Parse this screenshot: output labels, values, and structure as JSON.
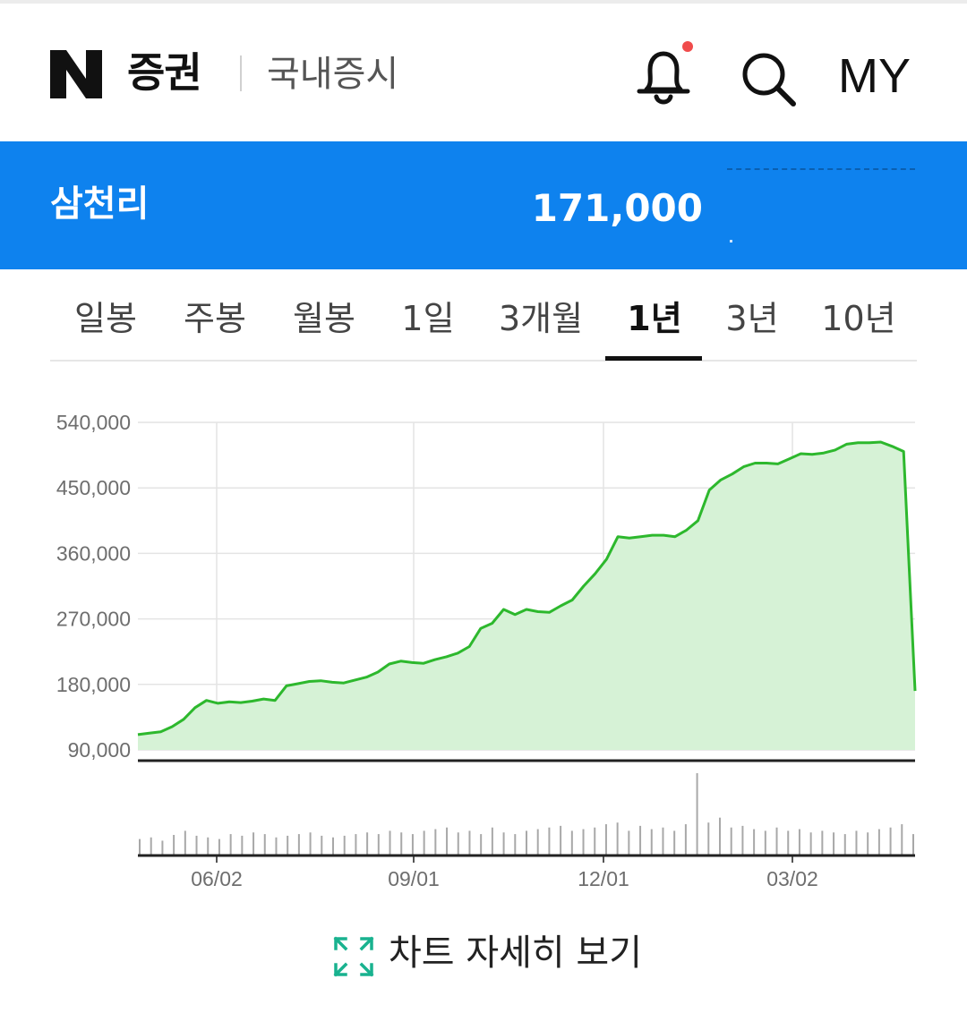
{
  "header": {
    "logo_letter": "N",
    "brand": "증권",
    "section": "국내증시",
    "my_label": "MY",
    "icons": {
      "bell": "bell-icon",
      "search": "search-icon"
    },
    "notification_dot_color": "#f04b4b"
  },
  "stock": {
    "name": "삼천리",
    "price": "171,000",
    "bar_color": "#0e82ee"
  },
  "tabs": [
    {
      "label": "일봉",
      "active": false
    },
    {
      "label": "주봉",
      "active": false
    },
    {
      "label": "월봉",
      "active": false
    },
    {
      "label": "1일",
      "active": false
    },
    {
      "label": "3개월",
      "active": false
    },
    {
      "label": "1년",
      "active": true
    },
    {
      "label": "3년",
      "active": false
    },
    {
      "label": "10년",
      "active": false
    }
  ],
  "chart_data": {
    "type": "area",
    "title": "",
    "xlabel": "",
    "ylabel": "",
    "y_ticks": [
      "540,000",
      "450,000",
      "360,000",
      "270,000",
      "180,000",
      "90,000"
    ],
    "x_ticks": [
      "06/02",
      "09/01",
      "12/01",
      "03/02"
    ],
    "ylim": [
      90000,
      540000
    ],
    "grid": true,
    "line_color": "#2db82d",
    "fill_color": "#d6f2d6",
    "series": [
      {
        "values": [
          111000,
          113000,
          115000,
          122000,
          132000,
          148000,
          158000,
          154000,
          156000,
          155000,
          157000,
          160000,
          158000,
          178000,
          181000,
          184000,
          185000,
          183000,
          182000,
          186000,
          190000,
          197000,
          208000,
          212000,
          210000,
          209000,
          214000,
          218000,
          223000,
          232000,
          257000,
          264000,
          283000,
          276000,
          283000,
          280000,
          279000,
          288000,
          296000,
          315000,
          332000,
          352000,
          383000,
          381000,
          383000,
          385000,
          385000,
          383000,
          392000,
          405000,
          447000,
          461000,
          469000,
          479000,
          484000,
          484000,
          483000,
          490000,
          497000,
          496000,
          498000,
          502000,
          510000,
          512000,
          512000,
          513000,
          507000,
          500000,
          171000
        ]
      }
    ],
    "volume": [
      20,
      22,
      18,
      25,
      30,
      24,
      22,
      20,
      26,
      24,
      28,
      26,
      22,
      24,
      26,
      28,
      24,
      22,
      24,
      26,
      28,
      26,
      30,
      28,
      26,
      30,
      32,
      34,
      28,
      30,
      26,
      34,
      28,
      26,
      30,
      32,
      34,
      36,
      30,
      32,
      34,
      38,
      40,
      30,
      36,
      32,
      34,
      30,
      38,
      100,
      40,
      46,
      34,
      36,
      32,
      30,
      34,
      30,
      32,
      28,
      30,
      28,
      26,
      30,
      28,
      32,
      34,
      38,
      26
    ]
  },
  "cta": {
    "label": "차트 자세히 보기",
    "icon": "expand-icon",
    "icon_color": "#19b28f"
  }
}
